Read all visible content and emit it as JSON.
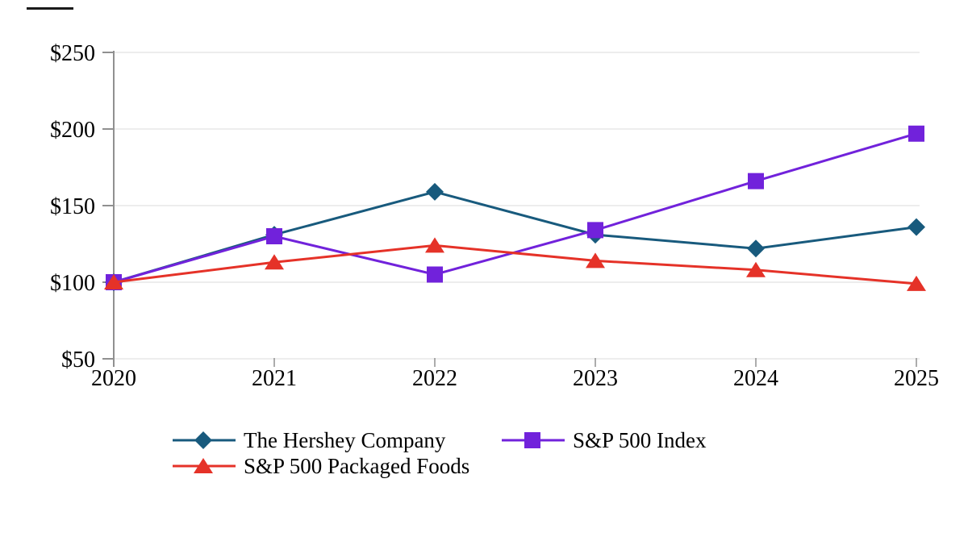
{
  "chart_data": {
    "type": "line",
    "title": "",
    "xlabel": "",
    "ylabel": "",
    "x_labels": [
      "2020",
      "2021",
      "2022",
      "2023",
      "2024",
      "2025"
    ],
    "y_ticks": [
      250,
      200,
      150,
      100,
      50
    ],
    "y_tick_labels": [
      "$250",
      "$200",
      "$150",
      "$100",
      "$50"
    ],
    "ylim": [
      50,
      250
    ],
    "grid": "horizontal",
    "legend_position": "bottom",
    "series": [
      {
        "name": "The Hershey Company",
        "marker": "diamond",
        "color": "#185A7D",
        "values": [
          100,
          131,
          159,
          131,
          122,
          136
        ]
      },
      {
        "name": "S&P 500 Index",
        "marker": "square",
        "color": "#7122DB",
        "values": [
          100,
          130,
          105,
          134,
          166,
          197
        ]
      },
      {
        "name": "S&P 500 Packaged Foods",
        "marker": "triangle",
        "color": "#E53228",
        "values": [
          100,
          113,
          124,
          114,
          108,
          99
        ]
      }
    ]
  },
  "style_colors": {
    "gridline": "#E7E7E7",
    "axis": "#909090",
    "tick": "#909090",
    "label": "#000000"
  }
}
